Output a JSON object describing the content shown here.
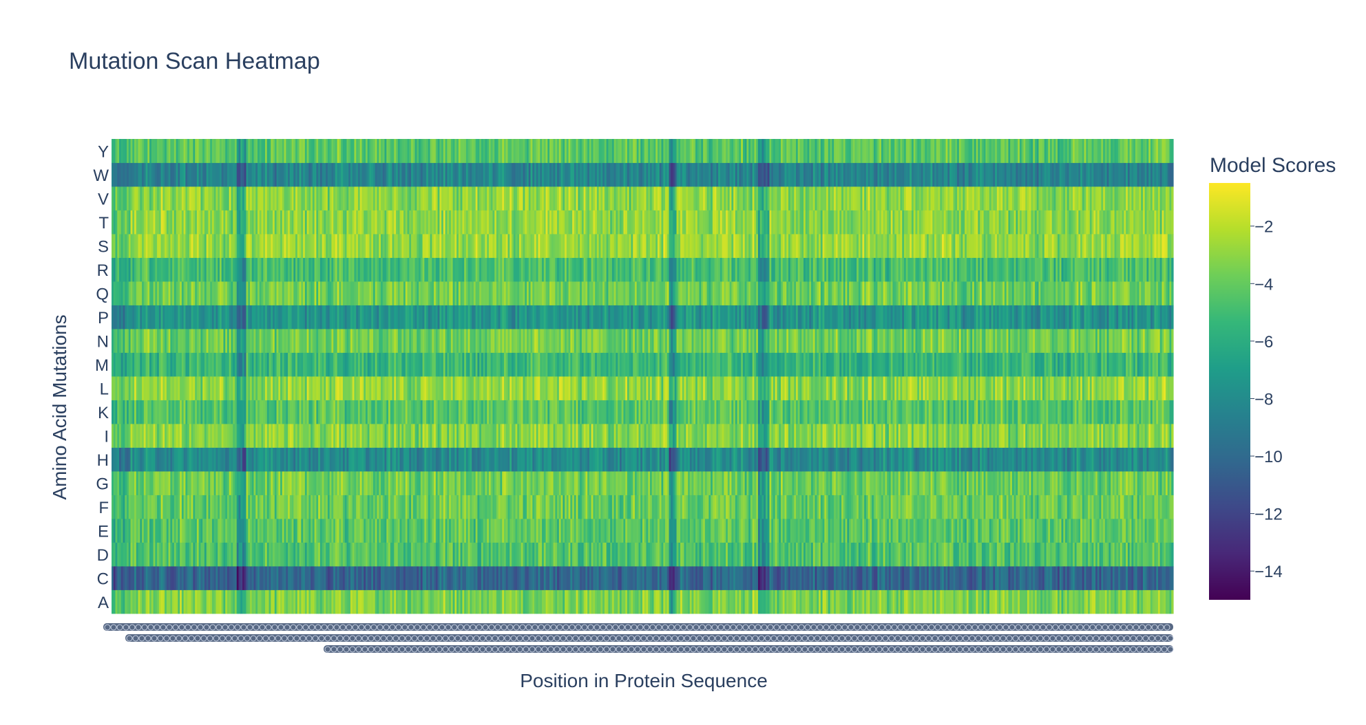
{
  "chart_data": {
    "type": "heatmap",
    "title": "Mutation Scan Heatmap",
    "xlabel": "Position in Protein Sequence",
    "ylabel": "Amino Acid Mutations",
    "y_categories": [
      "A",
      "C",
      "D",
      "E",
      "F",
      "G",
      "H",
      "I",
      "K",
      "L",
      "M",
      "N",
      "P",
      "Q",
      "R",
      "S",
      "T",
      "V",
      "W",
      "Y"
    ],
    "colorbar": {
      "title": "Model Scores",
      "tick_values": [
        -2,
        -4,
        -6,
        -8,
        -10,
        -12,
        -14
      ],
      "tick_labels": [
        "−2",
        "−4",
        "−6",
        "−8",
        "−10",
        "−12",
        "−14"
      ],
      "range": [
        -15,
        -0.5
      ],
      "colorscale": "Viridis"
    },
    "row_means": {
      "A": -3.4,
      "C": -10.2,
      "D": -4.6,
      "E": -4.4,
      "F": -3.9,
      "G": -3.8,
      "H": -8.0,
      "I": -3.2,
      "K": -4.4,
      "L": -3.0,
      "M": -5.4,
      "N": -3.7,
      "P": -7.5,
      "Q": -3.8,
      "R": -4.9,
      "S": -2.8,
      "T": -3.0,
      "V": -3.0,
      "W": -8.4,
      "Y": -4.3
    },
    "x_tick_note": "x-axis tick labels are densely overlapping and illegible"
  },
  "colors": {
    "text": "#2a3f5f",
    "viridis": [
      "#440154",
      "#482878",
      "#3e4989",
      "#31688e",
      "#26828e",
      "#1f9e89",
      "#35b779",
      "#6ece58",
      "#b5de2b",
      "#fde725"
    ]
  }
}
